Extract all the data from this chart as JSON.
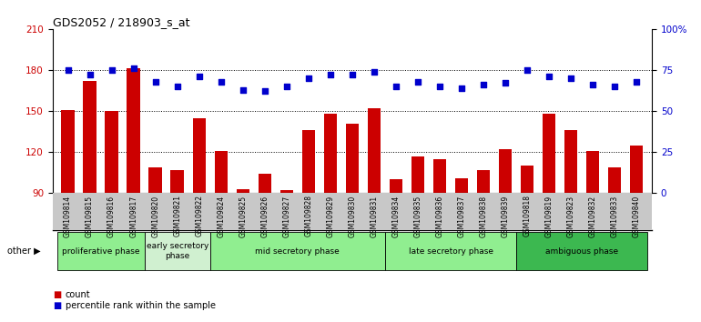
{
  "title": "GDS2052 / 218903_s_at",
  "samples": [
    "GSM109814",
    "GSM109815",
    "GSM109816",
    "GSM109817",
    "GSM109820",
    "GSM109821",
    "GSM109822",
    "GSM109824",
    "GSM109825",
    "GSM109826",
    "GSM109827",
    "GSM109828",
    "GSM109829",
    "GSM109830",
    "GSM109831",
    "GSM109834",
    "GSM109835",
    "GSM109836",
    "GSM109837",
    "GSM109838",
    "GSM109839",
    "GSM109818",
    "GSM109819",
    "GSM109823",
    "GSM109832",
    "GSM109833",
    "GSM109840"
  ],
  "counts": [
    151,
    172,
    150,
    181,
    109,
    107,
    145,
    121,
    93,
    104,
    92,
    136,
    148,
    141,
    152,
    100,
    117,
    115,
    101,
    107,
    122,
    110,
    148,
    136,
    121,
    109,
    125
  ],
  "percentiles": [
    75,
    72,
    75,
    76,
    68,
    65,
    71,
    68,
    63,
    62,
    65,
    70,
    72,
    72,
    74,
    65,
    68,
    65,
    64,
    66,
    67,
    75,
    71,
    70,
    66,
    65,
    68
  ],
  "phases": [
    {
      "name": "proliferative phase",
      "start": 0,
      "end": 4,
      "color": "#90EE90"
    },
    {
      "name": "early secretory\nphase",
      "start": 4,
      "end": 7,
      "color": "#d0f0d0"
    },
    {
      "name": "mid secretory phase",
      "start": 7,
      "end": 15,
      "color": "#90EE90"
    },
    {
      "name": "late secretory phase",
      "start": 15,
      "end": 21,
      "color": "#90EE90"
    },
    {
      "name": "ambiguous phase",
      "start": 21,
      "end": 27,
      "color": "#3CB850"
    }
  ],
  "ylim_left": [
    90,
    210
  ],
  "ylim_right": [
    0,
    100
  ],
  "yticks_left": [
    90,
    120,
    150,
    180,
    210
  ],
  "yticks_right": [
    0,
    25,
    50,
    75,
    100
  ],
  "bar_color": "#CC0000",
  "dot_color": "#0000CC",
  "tick_bg": "#C8C8C8",
  "plot_bg": "#ffffff"
}
